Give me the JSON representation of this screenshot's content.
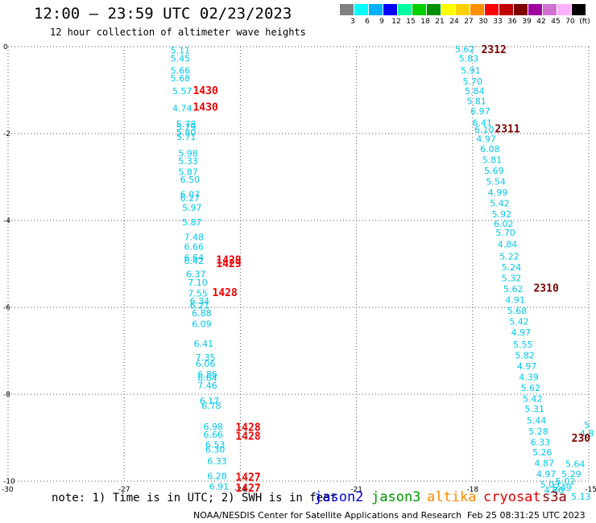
{
  "header": {
    "title": "12:00 — 23:59 UTC 02/23/2023",
    "subtitle": "12 hour collection of altimeter wave heights"
  },
  "colorbar": {
    "colors": [
      "#808080",
      "#00ffff",
      "#00b0ff",
      "#0000ff",
      "#00ffa0",
      "#00d000",
      "#009000",
      "#ffff00",
      "#ffd000",
      "#ff9000",
      "#ff0000",
      "#c00000",
      "#800000",
      "#a000a0",
      "#d070d0",
      "#ffb0ff",
      "#000000"
    ],
    "labels": [
      "3",
      "6",
      "9",
      "12",
      "15",
      "18",
      "21",
      "24",
      "27",
      "30",
      "33",
      "36",
      "39",
      "42",
      "45",
      "70",
      "(ft)"
    ]
  },
  "notes": {
    "text": "note: 1) Time is in UTC; 2) SWH is in feet",
    "footer": "NOAA/NESDIS Center for Satellite Applications and Research",
    "timestamp": "Feb 25 08:31:25 UTC 2023"
  },
  "legend": [
    {
      "name": "jason2",
      "color": "#0000dd"
    },
    {
      "name": "jason3",
      "color": "#009900"
    },
    {
      "name": "altika",
      "color": "#ff8800"
    },
    {
      "name": "cryosat",
      "color": "#dd0000"
    },
    {
      "name": "s3a",
      "color": "#880000"
    }
  ],
  "chart_data": {
    "type": "scatter",
    "xlim": [
      -30,
      -15
    ],
    "ylim": [
      -10,
      0
    ],
    "xticks": [
      "-30",
      "-27",
      "-24",
      "-21",
      "-18",
      "-15"
    ],
    "yticks": [
      "0",
      "-2",
      "-4",
      "-6",
      "-8",
      "-10"
    ],
    "grid": true,
    "point_color": "#00c8e8",
    "points": [
      {
        "x": -25.55,
        "y": -0.08,
        "v": "5.11"
      },
      {
        "x": -25.55,
        "y": -0.27,
        "v": "5.45"
      },
      {
        "x": -25.55,
        "y": -0.55,
        "v": "5.66"
      },
      {
        "x": -25.55,
        "y": -0.72,
        "v": "5.68"
      },
      {
        "x": -25.5,
        "y": -1.02,
        "v": "5.57"
      },
      {
        "x": -25.5,
        "y": -1.42,
        "v": "4.74"
      },
      {
        "x": -25.4,
        "y": -1.78,
        "v": "5.78"
      },
      {
        "x": -25.4,
        "y": -1.85,
        "v": "5.79"
      },
      {
        "x": -25.4,
        "y": -1.97,
        "v": "5.80"
      },
      {
        "x": -25.4,
        "y": -2.07,
        "v": "5.71"
      },
      {
        "x": -25.35,
        "y": -2.45,
        "v": "5.98"
      },
      {
        "x": -25.35,
        "y": -2.63,
        "v": "5.33"
      },
      {
        "x": -25.35,
        "y": -2.88,
        "v": "5.87"
      },
      {
        "x": -25.3,
        "y": -3.06,
        "v": "6.50"
      },
      {
        "x": -25.3,
        "y": -3.4,
        "v": "6.07"
      },
      {
        "x": -25.3,
        "y": -3.48,
        "v": "6.27"
      },
      {
        "x": -25.25,
        "y": -3.7,
        "v": "5.97"
      },
      {
        "x": -25.25,
        "y": -4.04,
        "v": "5.87"
      },
      {
        "x": -25.2,
        "y": -4.38,
        "v": "7.48"
      },
      {
        "x": -25.2,
        "y": -4.6,
        "v": "6.66"
      },
      {
        "x": -25.2,
        "y": -4.85,
        "v": "6.64"
      },
      {
        "x": -25.2,
        "y": -4.93,
        "v": "6.42"
      },
      {
        "x": -25.15,
        "y": -5.23,
        "v": "6.37"
      },
      {
        "x": -25.1,
        "y": -5.43,
        "v": "7.10"
      },
      {
        "x": -25.1,
        "y": -5.68,
        "v": "7.55"
      },
      {
        "x": -25.05,
        "y": -5.85,
        "v": "6.34"
      },
      {
        "x": -25.05,
        "y": -5.95,
        "v": "6.21"
      },
      {
        "x": -25.0,
        "y": -6.13,
        "v": "6.88"
      },
      {
        "x": -25.0,
        "y": -6.38,
        "v": "6.09"
      },
      {
        "x": -24.95,
        "y": -6.83,
        "v": "6.41"
      },
      {
        "x": -24.9,
        "y": -7.15,
        "v": "7.35"
      },
      {
        "x": -24.9,
        "y": -7.3,
        "v": "6.06"
      },
      {
        "x": -24.85,
        "y": -7.54,
        "v": "6.86"
      },
      {
        "x": -24.85,
        "y": -7.62,
        "v": "6.64"
      },
      {
        "x": -24.85,
        "y": -7.8,
        "v": "7.46"
      },
      {
        "x": -24.8,
        "y": -8.15,
        "v": "6.17"
      },
      {
        "x": -24.75,
        "y": -8.26,
        "v": "6.78"
      },
      {
        "x": -24.7,
        "y": -8.74,
        "v": "6.98"
      },
      {
        "x": -24.7,
        "y": -8.93,
        "v": "6.66"
      },
      {
        "x": -24.65,
        "y": -9.16,
        "v": "6.53"
      },
      {
        "x": -24.65,
        "y": -9.27,
        "v": "6.30"
      },
      {
        "x": -24.6,
        "y": -9.54,
        "v": "6.33"
      },
      {
        "x": -24.6,
        "y": -9.88,
        "v": "6.28"
      },
      {
        "x": -24.55,
        "y": -10.12,
        "v": "6.91"
      },
      {
        "x": -18.2,
        "y": -0.06,
        "v": "5.62"
      },
      {
        "x": -18.1,
        "y": -0.27,
        "v": "5.83"
      },
      {
        "x": -18.05,
        "y": -0.55,
        "v": "5.91"
      },
      {
        "x": -18.0,
        "y": -0.8,
        "v": "5.70"
      },
      {
        "x": -17.95,
        "y": -1.02,
        "v": "5.84"
      },
      {
        "x": -17.9,
        "y": -1.25,
        "v": "5.81"
      },
      {
        "x": -17.8,
        "y": -1.48,
        "v": "6.97"
      },
      {
        "x": -17.75,
        "y": -1.75,
        "v": "6.41"
      },
      {
        "x": -17.7,
        "y": -1.91,
        "v": "6.10"
      },
      {
        "x": -17.65,
        "y": -2.12,
        "v": "4.97"
      },
      {
        "x": -17.55,
        "y": -2.35,
        "v": "6.08"
      },
      {
        "x": -17.5,
        "y": -2.6,
        "v": "5.81"
      },
      {
        "x": -17.45,
        "y": -2.85,
        "v": "5.69"
      },
      {
        "x": -17.4,
        "y": -3.1,
        "v": "5.54"
      },
      {
        "x": -17.35,
        "y": -3.35,
        "v": "4.99"
      },
      {
        "x": -17.3,
        "y": -3.6,
        "v": "5.42"
      },
      {
        "x": -17.25,
        "y": -3.85,
        "v": "5.92"
      },
      {
        "x": -17.2,
        "y": -4.07,
        "v": "6.02"
      },
      {
        "x": -17.15,
        "y": -4.28,
        "v": "5.70"
      },
      {
        "x": -17.1,
        "y": -4.55,
        "v": "4.84"
      },
      {
        "x": -17.05,
        "y": -4.82,
        "v": "5.22"
      },
      {
        "x": -17.0,
        "y": -5.07,
        "v": "5.24"
      },
      {
        "x": -17.0,
        "y": -5.32,
        "v": "5.32"
      },
      {
        "x": -16.95,
        "y": -5.57,
        "v": "5.62"
      },
      {
        "x": -16.9,
        "y": -5.82,
        "v": "4.91"
      },
      {
        "x": -16.85,
        "y": -6.07,
        "v": "5.68"
      },
      {
        "x": -16.8,
        "y": -6.32,
        "v": "5.42"
      },
      {
        "x": -16.75,
        "y": -6.57,
        "v": "4.97"
      },
      {
        "x": -16.7,
        "y": -6.85,
        "v": "5.55"
      },
      {
        "x": -16.65,
        "y": -7.1,
        "v": "5.82"
      },
      {
        "x": -16.6,
        "y": -7.35,
        "v": "4.97"
      },
      {
        "x": -16.55,
        "y": -7.6,
        "v": "4.39"
      },
      {
        "x": -16.5,
        "y": -7.85,
        "v": "5.62"
      },
      {
        "x": -16.45,
        "y": -8.1,
        "v": "5.42"
      },
      {
        "x": -16.4,
        "y": -8.33,
        "v": "5.31"
      },
      {
        "x": -16.35,
        "y": -8.6,
        "v": "5.44"
      },
      {
        "x": -16.3,
        "y": -8.85,
        "v": "5.28"
      },
      {
        "x": -16.25,
        "y": -9.1,
        "v": "6.33"
      },
      {
        "x": -16.2,
        "y": -9.33,
        "v": "5.26"
      },
      {
        "x": -16.15,
        "y": -9.58,
        "v": "4.87"
      },
      {
        "x": -16.1,
        "y": -9.83,
        "v": "4.97"
      },
      {
        "x": -16.0,
        "y": -10.07,
        "v": "5.03"
      },
      {
        "x": -15.9,
        "y": -10.2,
        "v": "4.86"
      },
      {
        "x": -15.7,
        "y": -10.15,
        "v": "5.49"
      },
      {
        "x": -15.6,
        "y": -10.0,
        "v": "5.02"
      },
      {
        "x": -15.45,
        "y": -9.83,
        "v": "5.29"
      },
      {
        "x": -15.35,
        "y": -9.6,
        "v": "5.64"
      },
      {
        "x": -15.2,
        "y": -10.35,
        "v": "5.13"
      },
      {
        "x": -15.05,
        "y": -8.7,
        "v": "5"
      },
      {
        "x": -15.05,
        "y": -8.9,
        "v": "4.8"
      }
    ],
    "time_labels": [
      {
        "x": -24.9,
        "y": -1.0,
        "v": "1430",
        "color": "#ee0000"
      },
      {
        "x": -24.9,
        "y": -1.38,
        "v": "1430",
        "color": "#ee0000"
      },
      {
        "x": -24.3,
        "y": -4.9,
        "v": "1429",
        "color": "#ee0000"
      },
      {
        "x": -24.3,
        "y": -4.98,
        "v": "1429",
        "color": "#ee0000"
      },
      {
        "x": -24.4,
        "y": -5.65,
        "v": "1428",
        "color": "#ee0000"
      },
      {
        "x": -23.8,
        "y": -8.75,
        "v": "1428",
        "color": "#ee0000"
      },
      {
        "x": -23.8,
        "y": -8.95,
        "v": "1428",
        "color": "#ee0000"
      },
      {
        "x": -23.8,
        "y": -9.9,
        "v": "1427",
        "color": "#ee0000"
      },
      {
        "x": -23.8,
        "y": -10.15,
        "v": "1427",
        "color": "#ee0000"
      },
      {
        "x": -17.45,
        "y": -0.06,
        "v": "2312",
        "color": "#7a0000"
      },
      {
        "x": -17.1,
        "y": -1.88,
        "v": "2311",
        "color": "#7a0000"
      },
      {
        "x": -16.1,
        "y": -5.55,
        "v": "2310",
        "color": "#7a0000"
      },
      {
        "x": -15.2,
        "y": -9.0,
        "v": "230",
        "color": "#7a0000"
      }
    ]
  }
}
